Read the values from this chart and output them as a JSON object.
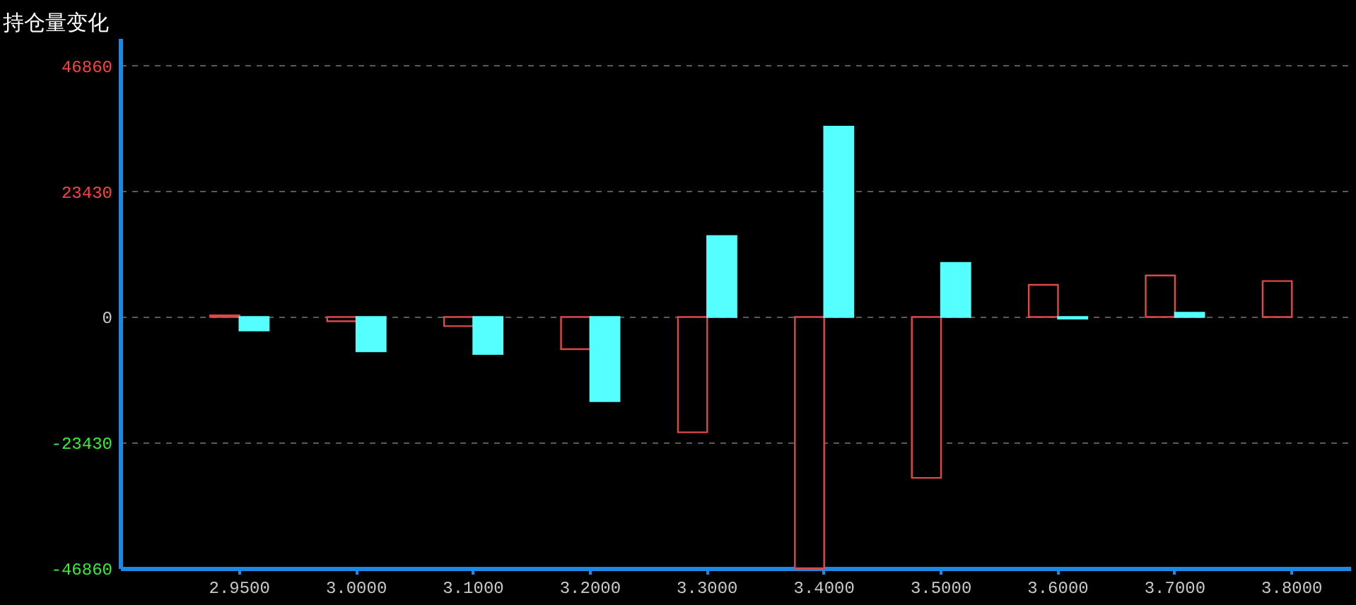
{
  "chart_data": {
    "type": "bar",
    "title": "持仓量变化",
    "categories": [
      "2.9500",
      "3.0000",
      "3.1000",
      "3.2000",
      "3.3000",
      "3.4000",
      "3.5000",
      "3.6000",
      "3.7000",
      "3.8000"
    ],
    "series": [
      {
        "color": "#e04848",
        "values": [
          300,
          -800,
          -1700,
          -6000,
          -21500,
          -46860,
          -30000,
          6000,
          7750,
          6700
        ]
      },
      {
        "color": "#55ffff",
        "values": [
          -2500,
          -6400,
          -6900,
          -15700,
          15100,
          35500,
          10100,
          -300,
          800,
          null
        ]
      }
    ],
    "ylim": [
      -46860,
      52000
    ],
    "yticks": [
      -46860,
      -23430,
      0,
      23430,
      46860
    ],
    "grid": "y"
  }
}
